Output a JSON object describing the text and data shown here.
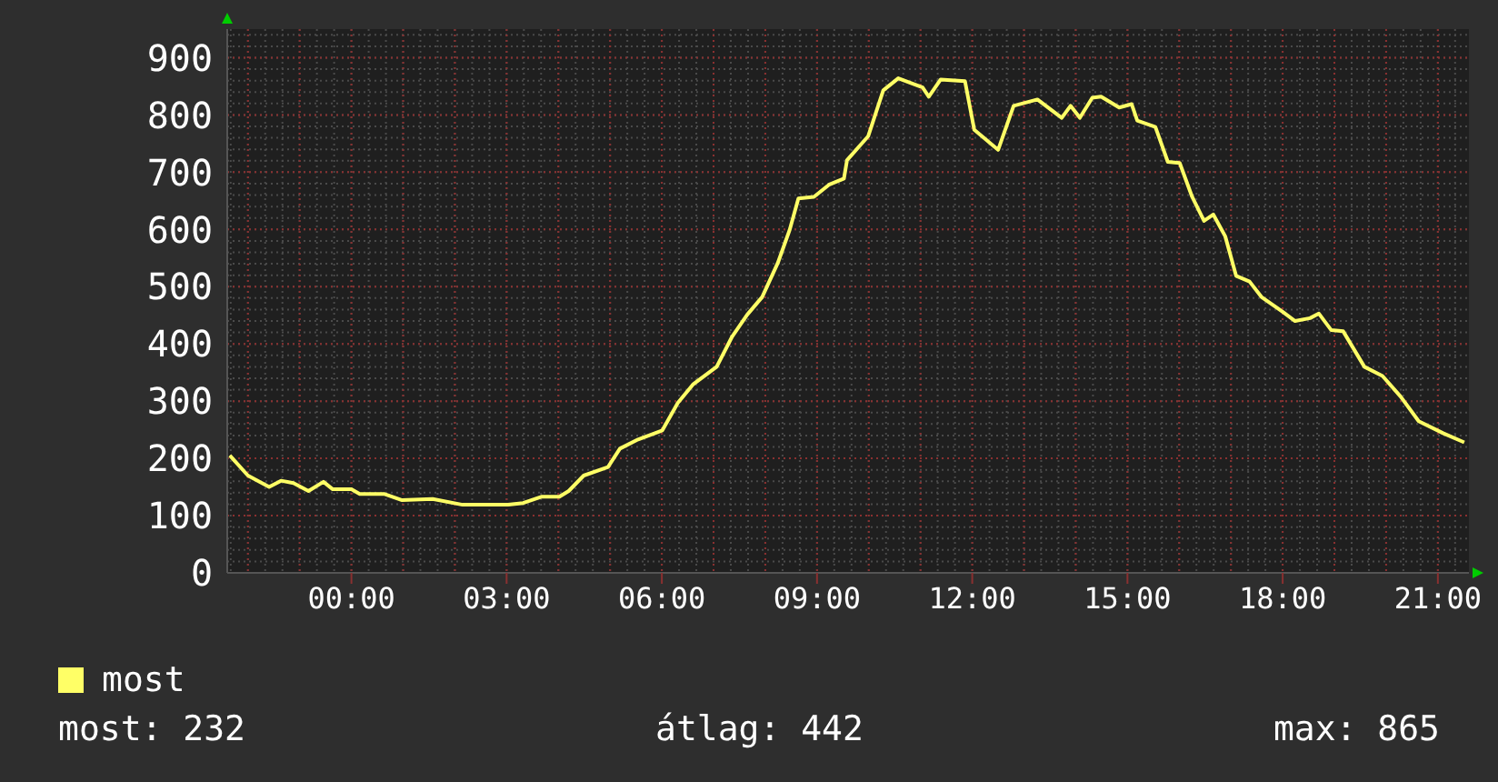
{
  "chart_data": {
    "type": "line",
    "x": [
      -2.35,
      -2.0,
      -1.59,
      -1.36,
      -1.12,
      -0.83,
      -0.54,
      -0.36,
      0,
      0.16,
      0.63,
      0.98,
      1.57,
      2.15,
      3.03,
      3.32,
      3.67,
      4.02,
      4.2,
      4.49,
      4.96,
      5.19,
      5.54,
      6.01,
      6.31,
      6.6,
      7.06,
      7.36,
      7.65,
      7.94,
      8.24,
      8.47,
      8.64,
      8.94,
      9.23,
      9.52,
      9.58,
      9.99,
      10.28,
      10.57,
      11.04,
      11.16,
      11.39,
      11.86,
      12.04,
      12.5,
      12.8,
      13.26,
      13.73,
      13.9,
      14.08,
      14.32,
      14.49,
      14.84,
      15.08,
      15.19,
      15.54,
      15.78,
      16.01,
      16.25,
      16.48,
      16.66,
      16.89,
      17.1,
      17.36,
      17.59,
      18.0,
      18.24,
      18.53,
      18.7,
      18.94,
      19.17,
      19.58,
      19.93,
      20.28,
      20.63,
      21.1,
      21.51
    ],
    "series": [
      {
        "name": "most",
        "color": "#ffff66",
        "values": [
          205,
          170,
          150,
          161,
          157,
          143,
          159,
          146,
          146,
          138,
          138,
          127,
          129,
          119,
          119,
          122,
          133,
          133,
          143,
          170,
          185,
          217,
          233,
          249,
          297,
          329,
          360,
          413,
          451,
          482,
          541,
          599,
          654,
          657,
          678,
          689,
          721,
          763,
          843,
          864,
          848,
          832,
          862,
          859,
          774,
          739,
          816,
          827,
          795,
          816,
          795,
          830,
          832,
          813,
          819,
          790,
          779,
          718,
          716,
          657,
          615,
          626,
          588,
          519,
          509,
          482,
          456,
          440,
          445,
          453,
          424,
          422,
          360,
          344,
          308,
          265,
          244,
          228
        ]
      }
    ],
    "xlim": [
      -2.4,
      21.6
    ],
    "xticks": [
      {
        "value": 0,
        "label": "00:00"
      },
      {
        "value": 3,
        "label": "03:00"
      },
      {
        "value": 6,
        "label": "06:00"
      },
      {
        "value": 9,
        "label": "09:00"
      },
      {
        "value": 12,
        "label": "12:00"
      },
      {
        "value": 15,
        "label": "15:00"
      },
      {
        "value": 18,
        "label": "18:00"
      },
      {
        "value": 21,
        "label": "21:00"
      }
    ],
    "ylim": [
      0,
      950
    ],
    "yticks": [
      0,
      100,
      200,
      300,
      400,
      500,
      600,
      700,
      800,
      900
    ],
    "grid": true,
    "legend": "bottom left",
    "line_style": "solid",
    "marker": "none",
    "annotations": [
      "most: 232",
      "átlag: 442",
      "max: 865"
    ]
  }
}
